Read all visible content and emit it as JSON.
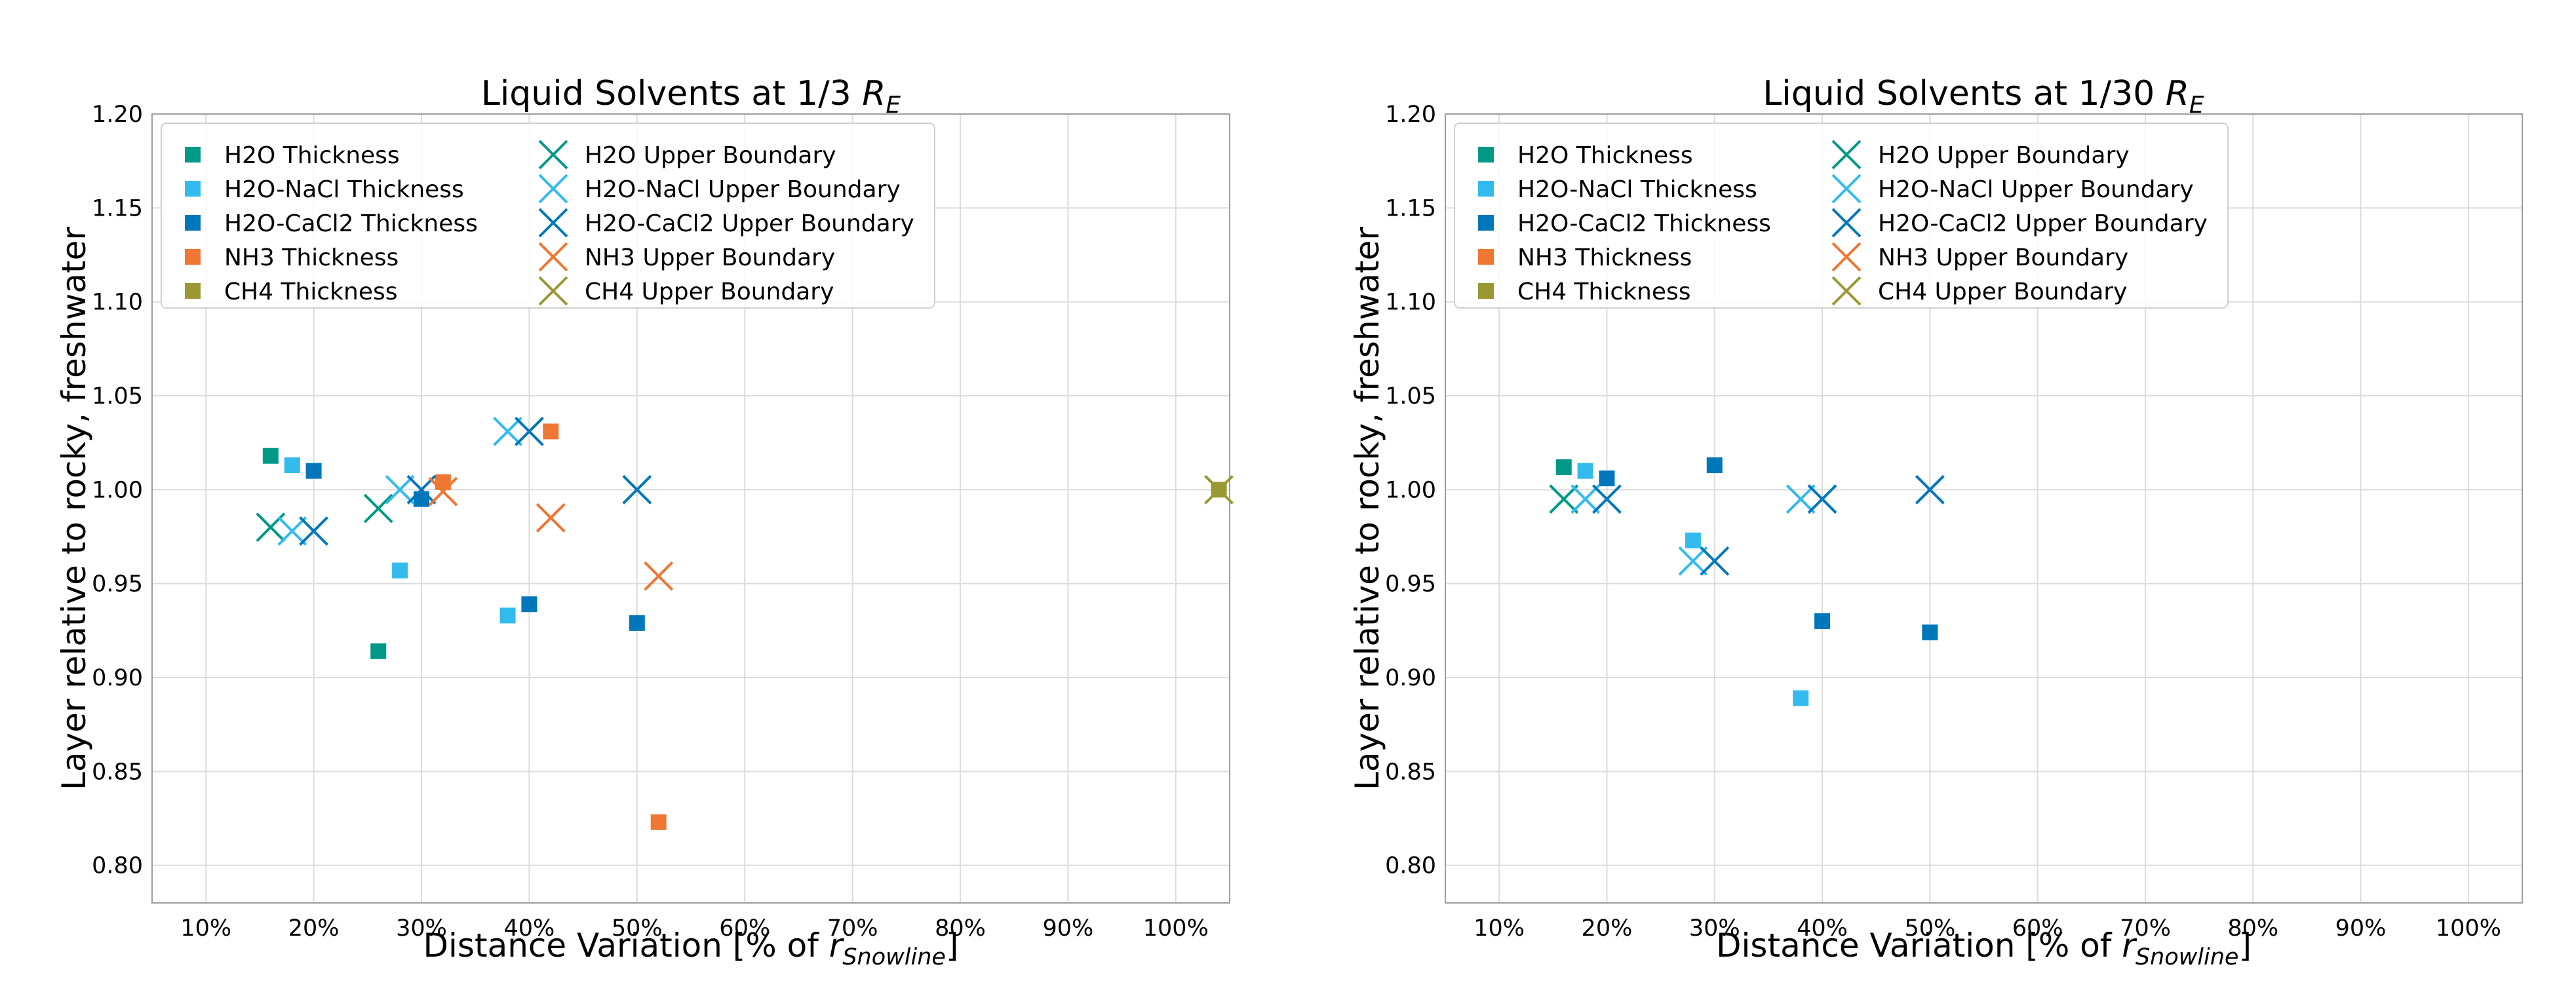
{
  "chart_data": [
    {
      "type": "scatter",
      "title": "Liquid Solvents at 1/3 ",
      "title_symbol": "R",
      "title_subscript": "E",
      "xlabel": "Distance Variation [% of ",
      "xlabel_symbol": "r",
      "xlabel_subscript": "Snowline",
      "xlabel_suffix": "]",
      "ylabel": "Layer relative to rocky, freshwater",
      "xlim": [
        5,
        105
      ],
      "ylim": [
        0.78,
        1.2
      ],
      "xticks": [
        10,
        20,
        30,
        40,
        50,
        60,
        70,
        80,
        90,
        100
      ],
      "xtick_labels": [
        "10%",
        "20%",
        "30%",
        "40%",
        "50%",
        "60%",
        "70%",
        "80%",
        "90%",
        "100%"
      ],
      "yticks": [
        0.8,
        0.85,
        0.9,
        0.95,
        1.0,
        1.05,
        1.1,
        1.15,
        1.2
      ],
      "ytick_labels": [
        "0.80",
        "0.85",
        "0.90",
        "0.95",
        "1.00",
        "1.05",
        "1.10",
        "1.15",
        "1.20"
      ],
      "grid": true,
      "legend_position": "top-left",
      "series": [
        {
          "name": "H2O Thickness",
          "marker": "square",
          "color": "#009988",
          "points": [
            [
              16,
              1.018
            ],
            [
              26,
              0.914
            ]
          ]
        },
        {
          "name": "H2O-NaCl Thickness",
          "marker": "square",
          "color": "#33BBEE",
          "points": [
            [
              18,
              1.013
            ],
            [
              28,
              0.957
            ],
            [
              38,
              0.933
            ]
          ]
        },
        {
          "name": "H2O-CaCl2 Thickness",
          "marker": "square",
          "color": "#0077BB",
          "points": [
            [
              20,
              1.01
            ],
            [
              30,
              0.995
            ],
            [
              40,
              0.939
            ],
            [
              50,
              0.929
            ]
          ]
        },
        {
          "name": "NH3 Thickness",
          "marker": "square",
          "color": "#EE7733",
          "points": [
            [
              32,
              1.004
            ],
            [
              42,
              1.031
            ],
            [
              52,
              0.823
            ]
          ]
        },
        {
          "name": "CH4 Thickness",
          "marker": "square",
          "color": "#999933",
          "points": [
            [
              104,
              1.0
            ]
          ]
        },
        {
          "name": "H2O Upper Boundary",
          "marker": "x",
          "color": "#009988",
          "points": [
            [
              16,
              0.98
            ],
            [
              26,
              0.99
            ]
          ]
        },
        {
          "name": "H2O-NaCl Upper Boundary",
          "marker": "x",
          "color": "#33BBEE",
          "points": [
            [
              18,
              0.978
            ],
            [
              28,
              1.0
            ],
            [
              38,
              1.031
            ]
          ]
        },
        {
          "name": "H2O-CaCl2 Upper Boundary",
          "marker": "x",
          "color": "#0077BB",
          "points": [
            [
              20,
              0.978
            ],
            [
              30,
              1.0
            ],
            [
              40,
              1.031
            ],
            [
              50,
              1.0
            ]
          ]
        },
        {
          "name": "NH3 Upper Boundary",
          "marker": "x",
          "color": "#EE7733",
          "points": [
            [
              32,
              0.999
            ],
            [
              42,
              0.985
            ],
            [
              52,
              0.954
            ]
          ]
        },
        {
          "name": "CH4 Upper Boundary",
          "marker": "x",
          "color": "#999933",
          "points": [
            [
              104,
              1.0
            ]
          ]
        }
      ]
    },
    {
      "type": "scatter",
      "title": "Liquid Solvents at 1/30 ",
      "title_symbol": "R",
      "title_subscript": "E",
      "xlabel": "Distance Variation [% of ",
      "xlabel_symbol": "r",
      "xlabel_subscript": "Snowline",
      "xlabel_suffix": "]",
      "ylabel": "Layer relative to rocky, freshwater",
      "xlim": [
        5,
        105
      ],
      "ylim": [
        0.78,
        1.2
      ],
      "xticks": [
        10,
        20,
        30,
        40,
        50,
        60,
        70,
        80,
        90,
        100
      ],
      "xtick_labels": [
        "10%",
        "20%",
        "30%",
        "40%",
        "50%",
        "60%",
        "70%",
        "80%",
        "90%",
        "100%"
      ],
      "yticks": [
        0.8,
        0.85,
        0.9,
        0.95,
        1.0,
        1.05,
        1.1,
        1.15,
        1.2
      ],
      "ytick_labels": [
        "0.80",
        "0.85",
        "0.90",
        "0.95",
        "1.00",
        "1.05",
        "1.10",
        "1.15",
        "1.20"
      ],
      "grid": true,
      "legend_position": "top-left",
      "series": [
        {
          "name": "H2O Thickness",
          "marker": "square",
          "color": "#009988",
          "points": [
            [
              16,
              1.012
            ]
          ]
        },
        {
          "name": "H2O-NaCl Thickness",
          "marker": "square",
          "color": "#33BBEE",
          "points": [
            [
              18,
              1.01
            ],
            [
              28,
              0.973
            ],
            [
              38,
              0.889
            ]
          ]
        },
        {
          "name": "H2O-CaCl2 Thickness",
          "marker": "square",
          "color": "#0077BB",
          "points": [
            [
              20,
              1.006
            ],
            [
              30,
              1.013
            ],
            [
              40,
              0.93
            ],
            [
              50,
              0.924
            ]
          ]
        },
        {
          "name": "NH3 Thickness",
          "marker": "square",
          "color": "#EE7733",
          "points": []
        },
        {
          "name": "CH4 Thickness",
          "marker": "square",
          "color": "#999933",
          "points": []
        },
        {
          "name": "H2O Upper Boundary",
          "marker": "x",
          "color": "#009988",
          "points": [
            [
              16,
              0.995
            ]
          ]
        },
        {
          "name": "H2O-NaCl Upper Boundary",
          "marker": "x",
          "color": "#33BBEE",
          "points": [
            [
              18,
              0.995
            ],
            [
              28,
              0.962
            ],
            [
              38,
              0.995
            ]
          ]
        },
        {
          "name": "H2O-CaCl2 Upper Boundary",
          "marker": "x",
          "color": "#0077BB",
          "points": [
            [
              20,
              0.995
            ],
            [
              30,
              0.962
            ],
            [
              40,
              0.995
            ],
            [
              50,
              1.0
            ]
          ]
        },
        {
          "name": "NH3 Upper Boundary",
          "marker": "x",
          "color": "#EE7733",
          "points": []
        },
        {
          "name": "CH4 Upper Boundary",
          "marker": "x",
          "color": "#999933",
          "points": []
        }
      ]
    }
  ]
}
